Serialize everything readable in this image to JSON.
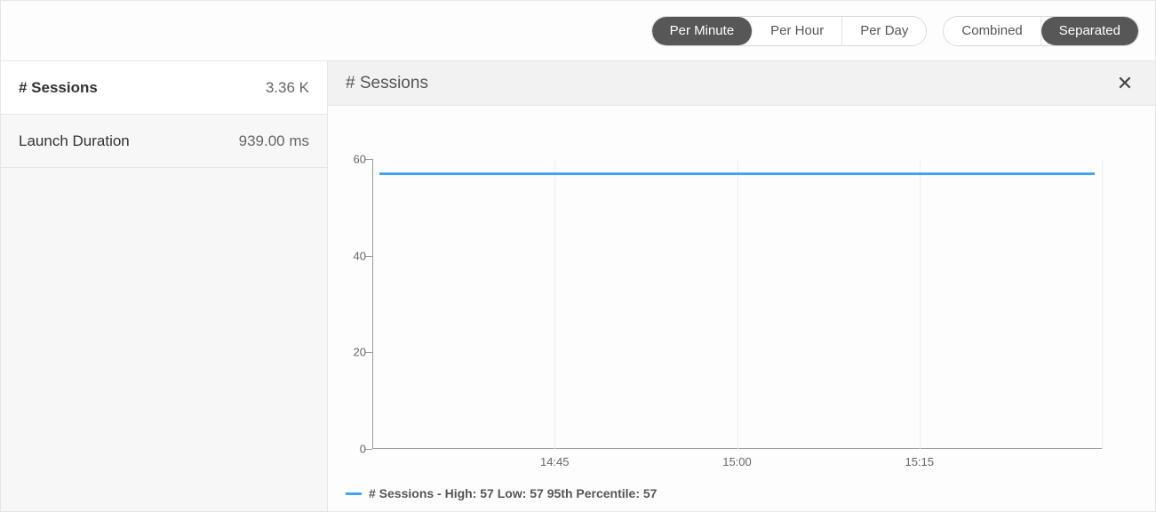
{
  "toolbar": {
    "time_granularity": {
      "options": [
        "Per Minute",
        "Per Hour",
        "Per Day"
      ],
      "active_index": 0
    },
    "view_mode": {
      "options": [
        "Combined",
        "Separated"
      ],
      "active_index": 1
    },
    "button_active_bg": "#575757",
    "button_active_fg": "#ffffff",
    "button_inactive_bg": "#ffffff",
    "button_inactive_fg": "#555555"
  },
  "sidebar": {
    "metrics": [
      {
        "label": "# Sessions",
        "value": "3.36 K",
        "selected": true
      },
      {
        "label": "Launch Duration",
        "value": "939.00 ms",
        "selected": false
      }
    ],
    "selected_bg": "#ffffff",
    "unselected_bg": "#f7f7f7"
  },
  "chart": {
    "title": "# Sessions",
    "type": "line",
    "line_color": "#44a4ee",
    "line_width": 3,
    "background_color": "#ffffff",
    "grid_color": "#eeeeee",
    "axis_color": "#999999",
    "ylim": [
      0,
      60
    ],
    "yticks": [
      0,
      20,
      40,
      60
    ],
    "x_labels": [
      "14:45",
      "15:00",
      "15:15"
    ],
    "x_label_positions_pct": [
      25,
      50,
      75
    ],
    "x_grid_positions_pct": [
      25,
      50,
      75,
      100
    ],
    "series_value": 57,
    "legend_text": "# Sessions - High: 57 Low: 57 95th Percentile: 57",
    "label_fontsize": 13
  }
}
